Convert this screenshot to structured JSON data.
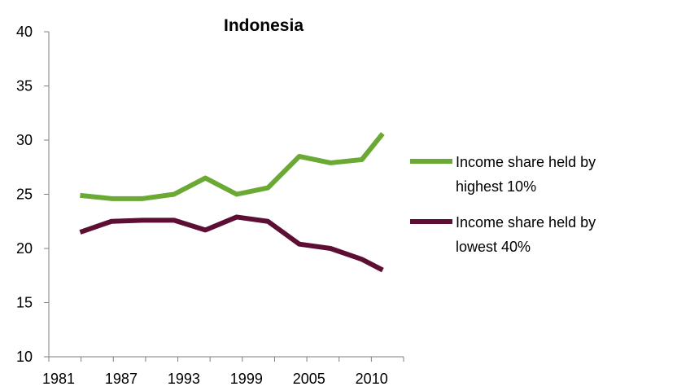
{
  "chart_data": {
    "type": "line",
    "title": "Indonesia",
    "xlabel": "",
    "ylabel": "",
    "x": [
      1984,
      1987,
      1990,
      1993,
      1996,
      1999,
      2002,
      2005,
      2008,
      2011,
      2013
    ],
    "x_ticks": [
      "1981",
      "1987",
      "1993",
      "1999",
      "2005",
      "2010"
    ],
    "ylim": [
      10,
      40
    ],
    "y_ticks": [
      "10",
      "15",
      "20",
      "25",
      "30",
      "35",
      "40"
    ],
    "grid": false,
    "legend": "right",
    "series": [
      {
        "name": "Income share held by highest 10%",
        "color": "#6aaa34",
        "values": [
          24.9,
          24.6,
          24.6,
          25.0,
          26.5,
          25.0,
          25.6,
          28.5,
          27.9,
          28.2,
          30.6
        ]
      },
      {
        "name": "Income share held by lowest 40%",
        "color": "#5c0e33",
        "values": [
          21.5,
          22.5,
          22.6,
          22.6,
          21.7,
          22.9,
          22.5,
          20.4,
          20.0,
          19.0,
          18.0
        ]
      }
    ]
  }
}
